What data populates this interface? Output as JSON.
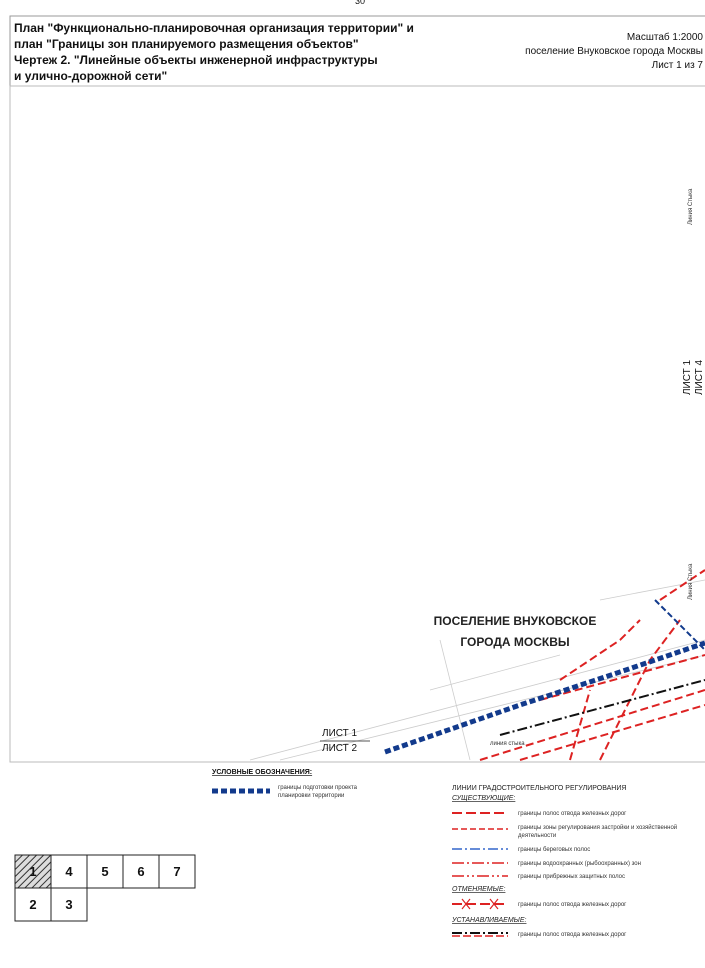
{
  "page_number": "30",
  "header": {
    "title_lines": [
      "План \"Функционально-планировочная организация территории\" и",
      "план \"Границы зон планируемого размещения объектов\"",
      "Чертеж 2. \"Линейные объекты инженерной инфраструктуры",
      "и улично-дорожной сети\""
    ],
    "scale": "Масштаб 1:2000",
    "settlement": "поселение Внуковское города Москвы",
    "sheet": "Лист 1 из 7"
  },
  "map": {
    "join_line_top": "Линия Стыка",
    "sheet_1_4": [
      "ЛИСТ 1",
      "ЛИСТ 4"
    ],
    "settlement": [
      "ПОСЕЛЕНИЕ ВНУКОВСКОЕ",
      "ГОРОДА МОСКВЫ"
    ],
    "sheet_1_2": [
      "ЛИСТ 1",
      "ЛИСТ 2"
    ],
    "join_line_bottom": "линия стыка",
    "join_line_right": "Линия Стыка"
  },
  "legend": {
    "title": "УСЛОВНЫЕ ОБОЗНАЧЕНИЯ:",
    "boundary": [
      "границы подготовки проекта",
      "планировки территории"
    ],
    "regulation_title": "ЛИНИИ ГРАДОСТРОИТЕЛЬНОГО РЕГУЛИРОВАНИЯ",
    "existing_title": "СУЩЕСТВУЮЩИЕ:",
    "existing_items": [
      "границы полос отвода железных дорог",
      "границы зоны регулирования застройки и хозяйственной",
      "деятельности",
      "границы береговых полос",
      "границы водоохранных (рыбоохранных) зон",
      "границы прибрежных защитных полос"
    ],
    "cancelled_title": "ОТМЕНЯЕМЫЕ:",
    "cancelled_item": "границы полос отвода железных дорог",
    "established_title": "УСТАНАВЛИВАЕМЫЕ:",
    "established_item": "границы полос отвода железных дорог"
  },
  "sheet_index": [
    "1",
    "2",
    "3",
    "4",
    "5",
    "6",
    "7"
  ]
}
